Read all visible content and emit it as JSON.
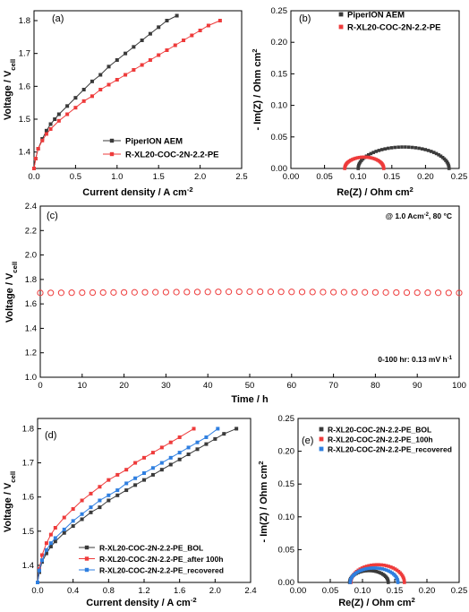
{
  "colors": {
    "black": "#3a3a3a",
    "red": "#ee3b3b",
    "blue": "#2f7fe0"
  },
  "chart_data": [
    {
      "panel": "(a)",
      "type": "line",
      "xlabel": "Current density / A cm⁻²",
      "ylabel": "Voltage / V₍cell₎",
      "ylabel_main": "Voltage / V",
      "ylabel_sub": "cell",
      "xlabel_main": "Current density / A cm",
      "xlabel_sup": "-2",
      "xlim": [
        0,
        2.5
      ],
      "ylim": [
        1.35,
        1.83
      ],
      "xticks": [
        "0.0",
        "0.5",
        "1.0",
        "1.5",
        "2.0",
        "2.5"
      ],
      "yticks": [
        "1.4",
        "1.5",
        "1.6",
        "1.7",
        "1.8"
      ],
      "legend_position": "bottom-right",
      "series": [
        {
          "name": "PiperION AEM",
          "marker": "square",
          "color": "black",
          "x": [
            0,
            0.02,
            0.05,
            0.1,
            0.15,
            0.2,
            0.25,
            0.3,
            0.4,
            0.5,
            0.6,
            0.7,
            0.8,
            0.9,
            1.0,
            1.1,
            1.2,
            1.3,
            1.4,
            1.5,
            1.6,
            1.72
          ],
          "y": [
            1.35,
            1.38,
            1.41,
            1.44,
            1.465,
            1.485,
            1.5,
            1.515,
            1.54,
            1.565,
            1.59,
            1.615,
            1.635,
            1.66,
            1.68,
            1.7,
            1.72,
            1.74,
            1.76,
            1.78,
            1.8,
            1.815
          ]
        },
        {
          "name": "R-XL20-COC-2N-2.2-PE",
          "marker": "square",
          "color": "red",
          "x": [
            0,
            0.02,
            0.05,
            0.1,
            0.15,
            0.2,
            0.3,
            0.4,
            0.5,
            0.6,
            0.7,
            0.8,
            0.9,
            1.0,
            1.1,
            1.2,
            1.3,
            1.4,
            1.5,
            1.6,
            1.7,
            1.8,
            1.9,
            2.0,
            2.1,
            2.24
          ],
          "y": [
            1.35,
            1.38,
            1.41,
            1.435,
            1.455,
            1.47,
            1.495,
            1.515,
            1.535,
            1.555,
            1.57,
            1.59,
            1.605,
            1.62,
            1.635,
            1.65,
            1.665,
            1.68,
            1.695,
            1.71,
            1.725,
            1.74,
            1.755,
            1.77,
            1.785,
            1.8
          ]
        }
      ]
    },
    {
      "panel": "(b)",
      "type": "scatter",
      "xlabel_main": "Re(Z) / Ohm cm",
      "xlabel_sup": "2",
      "ylabel_main": "- Im(Z) / Ohm cm",
      "ylabel_sup": "2",
      "xlim": [
        0,
        0.25
      ],
      "ylim": [
        0,
        0.25
      ],
      "xticks": [
        "0.00",
        "0.05",
        "0.10",
        "0.15",
        "0.20",
        "0.25"
      ],
      "yticks": [
        "0.00",
        "0.05",
        "0.10",
        "0.15",
        "0.20",
        "0.25"
      ],
      "legend_position": "top-right",
      "series": [
        {
          "name": "PiperION AEM",
          "marker": "square",
          "color": "black",
          "arc": {
            "start": 0.1,
            "end": 0.235,
            "peak": 0.034,
            "points": 42
          }
        },
        {
          "name": "R-XL20-COC-2N-2.2-PE",
          "marker": "square",
          "color": "red",
          "arc": {
            "start": 0.08,
            "end": 0.138,
            "peak": 0.018,
            "points": 32
          }
        }
      ]
    },
    {
      "panel": "(c)",
      "type": "scatter",
      "xlabel": "Time / h",
      "ylabel_main": "Voltage / V",
      "ylabel_sub": "cell",
      "xlim": [
        0,
        100
      ],
      "ylim": [
        1.0,
        2.4
      ],
      "xticks": [
        "0",
        "10",
        "20",
        "30",
        "40",
        "50",
        "60",
        "70",
        "80",
        "90",
        "100"
      ],
      "yticks": [
        "1.0",
        "1.2",
        "1.4",
        "1.6",
        "1.8",
        "2.0",
        "2.2",
        "2.4"
      ],
      "annotation_top_main": "@ 1.0 Acm",
      "annotation_top_sup": "-2",
      "annotation_top_tail": ", 80 °C",
      "annotation_bottom_main": "0-100 hr: 0.13 mV h",
      "annotation_bottom_sup": "-1",
      "series": [
        {
          "name": "R-XL20-COC-2N-2.2-PE",
          "marker": "open-circle",
          "color": "red",
          "x_start": 0,
          "x_end": 100,
          "x_step": 2.5,
          "y_start": 1.69,
          "y_mid": 1.7,
          "y_end": 1.69
        }
      ]
    },
    {
      "panel": "(d)",
      "type": "line",
      "xlabel_main": "Current density / A cm",
      "xlabel_sup": "-2",
      "ylabel_main": "Voltage / V",
      "ylabel_sub": "cell",
      "xlim": [
        0,
        2.4
      ],
      "ylim": [
        1.35,
        1.83
      ],
      "xticks": [
        "0.0",
        "0.4",
        "0.8",
        "1.2",
        "1.6",
        "2.0",
        "2.4"
      ],
      "yticks": [
        "1.4",
        "1.5",
        "1.6",
        "1.7",
        "1.8"
      ],
      "legend_position": "bottom-right",
      "series": [
        {
          "name": "R-XL20-COC-2N-2.2-PE_BOL",
          "marker": "square",
          "color": "black",
          "x": [
            0,
            0.02,
            0.05,
            0.1,
            0.15,
            0.2,
            0.3,
            0.4,
            0.5,
            0.6,
            0.7,
            0.8,
            0.9,
            1.0,
            1.1,
            1.2,
            1.3,
            1.4,
            1.5,
            1.6,
            1.7,
            1.8,
            1.9,
            2.0,
            2.1,
            2.24
          ],
          "y": [
            1.35,
            1.38,
            1.41,
            1.435,
            1.455,
            1.47,
            1.495,
            1.515,
            1.535,
            1.555,
            1.57,
            1.59,
            1.605,
            1.62,
            1.635,
            1.65,
            1.665,
            1.68,
            1.695,
            1.71,
            1.725,
            1.74,
            1.755,
            1.77,
            1.785,
            1.8
          ]
        },
        {
          "name": "R-XL20-COC-2N-2.2-PE_after 100h",
          "marker": "square",
          "color": "red",
          "x": [
            0,
            0.02,
            0.05,
            0.1,
            0.15,
            0.2,
            0.3,
            0.4,
            0.5,
            0.6,
            0.7,
            0.8,
            0.9,
            1.0,
            1.1,
            1.2,
            1.3,
            1.4,
            1.5,
            1.6,
            1.76
          ],
          "y": [
            1.35,
            1.39,
            1.43,
            1.465,
            1.49,
            1.51,
            1.54,
            1.565,
            1.59,
            1.61,
            1.63,
            1.65,
            1.665,
            1.68,
            1.7,
            1.715,
            1.73,
            1.745,
            1.76,
            1.775,
            1.8
          ]
        },
        {
          "name": "R-XL20-COC-2N-2.2-PE_recovered",
          "marker": "square",
          "color": "blue",
          "x": [
            0,
            0.02,
            0.05,
            0.1,
            0.15,
            0.2,
            0.3,
            0.4,
            0.5,
            0.6,
            0.7,
            0.8,
            0.9,
            1.0,
            1.1,
            1.2,
            1.3,
            1.4,
            1.5,
            1.6,
            1.7,
            1.8,
            1.9,
            2.03
          ],
          "y": [
            1.35,
            1.385,
            1.415,
            1.445,
            1.465,
            1.48,
            1.505,
            1.53,
            1.55,
            1.57,
            1.59,
            1.605,
            1.62,
            1.64,
            1.655,
            1.67,
            1.685,
            1.7,
            1.715,
            1.73,
            1.745,
            1.76,
            1.775,
            1.8
          ]
        }
      ]
    },
    {
      "panel": "(e)",
      "type": "scatter",
      "xlabel_main": "Re(Z) / Ohm cm",
      "xlabel_sup": "2",
      "ylabel_main": "- Im(Z) / Ohm cm",
      "ylabel_sup": "2",
      "xlim": [
        0,
        0.25
      ],
      "ylim": [
        0,
        0.25
      ],
      "xticks": [
        "0.00",
        "0.05",
        "0.10",
        "0.15",
        "0.20",
        "0.25"
      ],
      "yticks": [
        "0.00",
        "0.05",
        "0.10",
        "0.15",
        "0.20",
        "0.25"
      ],
      "legend_position": "top-left",
      "series": [
        {
          "name": "R-XL20-COC-2N-2.2-PE_BOL",
          "marker": "square",
          "color": "black",
          "arc": {
            "start": 0.08,
            "end": 0.14,
            "peak": 0.018,
            "points": 30
          }
        },
        {
          "name": "R-XL20-COC-2N-2.2-PE_100h",
          "marker": "square",
          "color": "red",
          "arc": {
            "start": 0.082,
            "end": 0.165,
            "peak": 0.027,
            "points": 34
          }
        },
        {
          "name": "R-XL20-COC-2N-2.2-PE_recovered",
          "marker": "square",
          "color": "blue",
          "arc": {
            "start": 0.081,
            "end": 0.155,
            "peak": 0.022,
            "points": 32
          }
        }
      ]
    }
  ]
}
